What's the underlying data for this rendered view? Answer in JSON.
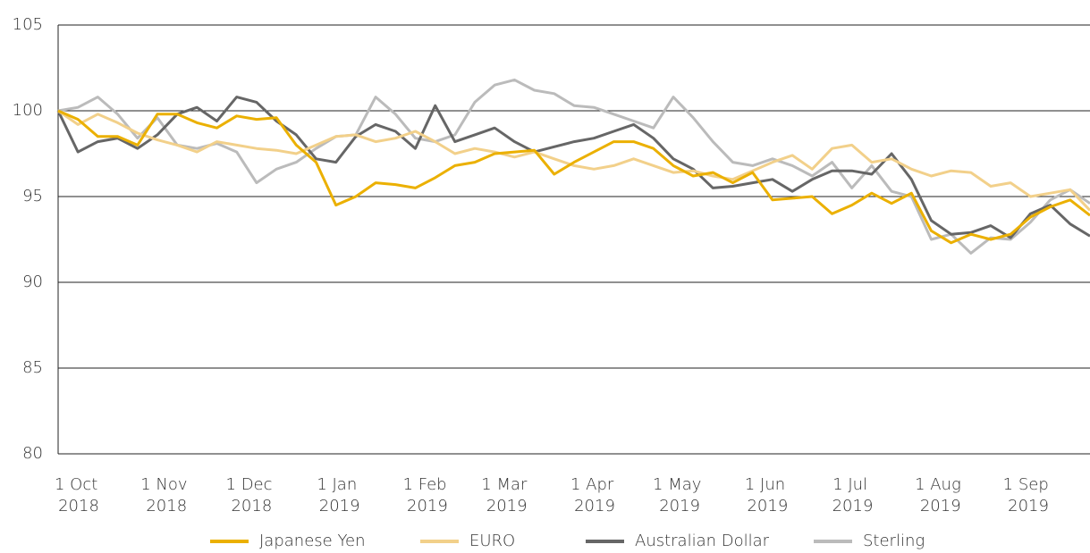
{
  "chart_data": {
    "type": "line",
    "x": [
      "2018-10-01",
      "2018-10-08",
      "2018-10-15",
      "2018-10-22",
      "2018-10-29",
      "2018-11-05",
      "2018-11-12",
      "2018-11-19",
      "2018-11-26",
      "2018-12-03",
      "2018-12-10",
      "2018-12-17",
      "2018-12-24",
      "2018-12-31",
      "2019-01-07",
      "2019-01-14",
      "2019-01-21",
      "2019-01-28",
      "2019-02-04",
      "2019-02-11",
      "2019-02-18",
      "2019-02-25",
      "2019-03-04",
      "2019-03-11",
      "2019-03-18",
      "2019-03-25",
      "2019-04-01",
      "2019-04-08",
      "2019-04-15",
      "2019-04-22",
      "2019-04-29",
      "2019-05-06",
      "2019-05-13",
      "2019-05-20",
      "2019-05-27",
      "2019-06-03",
      "2019-06-10",
      "2019-06-17",
      "2019-06-24",
      "2019-07-01",
      "2019-07-08",
      "2019-07-15",
      "2019-07-22",
      "2019-07-29",
      "2019-08-05",
      "2019-08-12",
      "2019-08-19",
      "2019-08-26",
      "2019-09-02",
      "2019-09-09",
      "2019-09-16",
      "2019-09-23",
      "2019-09-30"
    ],
    "series": [
      {
        "name": "Japanese Yen",
        "color": "#ebb000",
        "values": [
          100,
          99.5,
          98.5,
          98.5,
          98.0,
          99.8,
          99.8,
          99.3,
          99.0,
          99.7,
          99.5,
          99.6,
          98.0,
          97,
          94.5,
          95,
          95.8,
          95.7,
          95.5,
          96.1,
          96.8,
          97,
          97.5,
          97.6,
          97.7,
          96.3,
          97,
          97.6,
          98.2,
          98.2,
          97.8,
          96.8,
          96.2,
          96.4,
          95.8,
          96.4,
          94.8,
          94.9,
          95,
          94,
          94.5,
          95.2,
          94.6,
          95.2,
          93.0,
          92.3,
          92.8,
          92.5,
          92.8,
          93.8,
          94.4,
          94.8,
          93.9
        ]
      },
      {
        "name": "EURO",
        "color": "#f2d08a",
        "values": [
          100,
          99.2,
          99.8,
          99.3,
          98.7,
          98.3,
          98.0,
          97.6,
          98.2,
          98.0,
          97.8,
          97.7,
          97.5,
          98.0,
          98.5,
          98.6,
          98.2,
          98.4,
          98.8,
          98.2,
          97.5,
          97.8,
          97.6,
          97.3,
          97.6,
          97.2,
          96.8,
          96.6,
          96.8,
          97.2,
          96.8,
          96.4,
          96.5,
          96.2,
          96.0,
          96.5,
          97,
          97.4,
          96.6,
          97.8,
          98,
          97.0,
          97.2,
          96.6,
          96.2,
          96.5,
          96.4,
          95.6,
          95.8,
          95.0,
          95.2,
          95.4,
          94.2
        ]
      },
      {
        "name": "Australian Dollar",
        "color": "#666666",
        "values": [
          100,
          97.6,
          98.2,
          98.4,
          97.8,
          98.6,
          99.8,
          100.2,
          99.4,
          100.8,
          100.5,
          99.4,
          98.6,
          97.2,
          97.0,
          98.5,
          99.2,
          98.8,
          97.8,
          100.3,
          98.2,
          98.6,
          99,
          98.2,
          97.6,
          97.9,
          98.2,
          98.4,
          98.8,
          99.2,
          98.4,
          97.2,
          96.6,
          95.5,
          95.6,
          95.8,
          96.0,
          95.3,
          96,
          96.5,
          96.5,
          96.3,
          97.5,
          96,
          93.6,
          92.8,
          92.9,
          93.3,
          92.6,
          94.0,
          94.5,
          93.4,
          92.7
        ]
      },
      {
        "name": "Sterling",
        "color": "#bbbbbb",
        "values": [
          100,
          100.2,
          100.8,
          99.8,
          98.4,
          99.6,
          98.0,
          97.8,
          98.1,
          97.6,
          95.8,
          96.6,
          97.0,
          97.8,
          98.5,
          98.6,
          100.8,
          99.8,
          98.4,
          98.2,
          98.6,
          100.5,
          101.5,
          101.8,
          101.2,
          101,
          100.3,
          100.2,
          99.8,
          99.4,
          99.0,
          100.8,
          99.6,
          98.2,
          97.0,
          96.8,
          97.2,
          96.8,
          96.2,
          97.0,
          95.5,
          96.8,
          95.3,
          95.0,
          92.5,
          92.8,
          91.7,
          92.6,
          92.5,
          93.5,
          94.8,
          95.4,
          94.6
        ]
      }
    ],
    "xlim": [
      "2018-10-01",
      "2019-09-30"
    ],
    "xticks": [
      {
        "value": "2018-10-01",
        "label": "1 Oct 2018"
      },
      {
        "value": "2018-11-01",
        "label": "1 Nov 2018"
      },
      {
        "value": "2018-12-01",
        "label": "1 Dec 2018"
      },
      {
        "value": "2019-01-01",
        "label": "1 Jan 2019"
      },
      {
        "value": "2019-02-01",
        "label": "1 Feb 2019"
      },
      {
        "value": "2019-03-01",
        "label": "1 Mar 2019"
      },
      {
        "value": "2019-04-01",
        "label": "1 Apr 2019"
      },
      {
        "value": "2019-05-01",
        "label": "1 May 2019"
      },
      {
        "value": "2019-06-01",
        "label": "1 Jun 2019"
      },
      {
        "value": "2019-07-01",
        "label": "1 Jul 2019"
      },
      {
        "value": "2019-08-01",
        "label": "1 Aug 2019"
      },
      {
        "value": "2019-09-01",
        "label": "1 Sep 2019"
      }
    ],
    "ylim": [
      80,
      105
    ],
    "yticks": [
      80,
      85,
      90,
      95,
      100,
      105
    ],
    "grid": true,
    "legend": "bottom"
  }
}
